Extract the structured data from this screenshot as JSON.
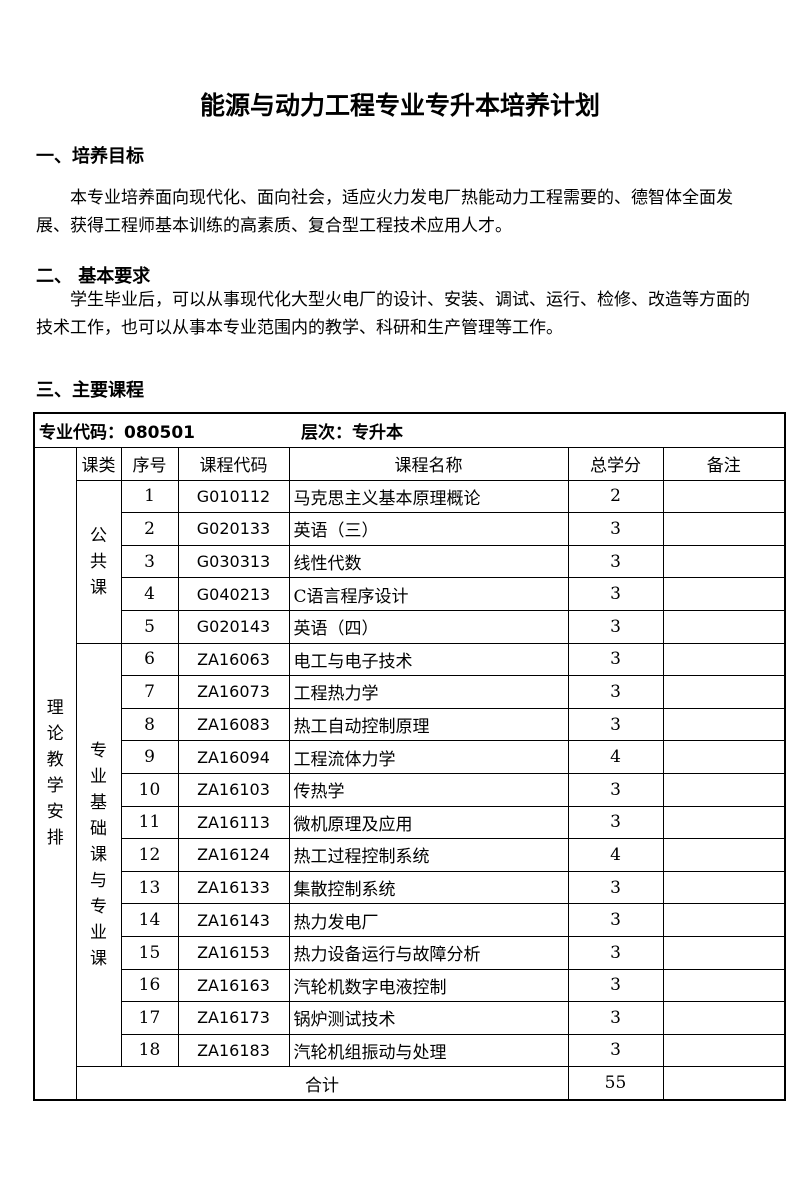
{
  "title": "能源与动力工程专业专升本培养计划",
  "s1": {
    "heading": "一、培养目标",
    "text": "本专业培养面向现代化、面向社会，适应火力发电厂热能动力工程需要的、德智体全面发展、获得工程师基本训练的高素质、复合型工程技术应用人才。"
  },
  "s2": {
    "heading": "二、  基本要求",
    "text": "学生毕业后，可以从事现代化大型火电厂的设计、安装、调试、运行、检修、改造等方面的技术工作，也可以从事本专业范围内的教学、科研和生产管理等工作。"
  },
  "s3": {
    "heading": "三、主要课程"
  },
  "table": {
    "major_code": "专业代码：080501",
    "level": "层次：专升本",
    "section": "理论教学安排",
    "headers": [
      "课类",
      "序号",
      "课程代码",
      "课程名称",
      "总学分",
      "备注"
    ],
    "groups": [
      "公共课",
      "专业基础课与专业课"
    ],
    "rows": [
      {
        "no": "1",
        "code": "G010112",
        "name": "马克思主义基本原理概论",
        "credits": "2"
      },
      {
        "no": "2",
        "code": "G020133",
        "name": "英语（三）",
        "credits": "3"
      },
      {
        "no": "3",
        "code": "G030313",
        "name": "线性代数",
        "credits": "3"
      },
      {
        "no": "4",
        "code": "G040213",
        "name": "C语言程序设计",
        "credits": "3"
      },
      {
        "no": "5",
        "code": "G020143",
        "name": "英语（四）",
        "credits": "3"
      },
      {
        "no": "6",
        "code": "ZA16063",
        "name": "电工与电子技术",
        "credits": "3"
      },
      {
        "no": "7",
        "code": "ZA16073",
        "name": "工程热力学",
        "credits": "3"
      },
      {
        "no": "8",
        "code": "ZA16083",
        "name": "热工自动控制原理",
        "credits": "3"
      },
      {
        "no": "9",
        "code": "ZA16094",
        "name": "工程流体力学",
        "credits": "4"
      },
      {
        "no": "10",
        "code": "ZA16103",
        "name": "传热学",
        "credits": "3"
      },
      {
        "no": "11",
        "code": "ZA16113",
        "name": "微机原理及应用",
        "credits": "3"
      },
      {
        "no": "12",
        "code": "ZA16124",
        "name": "热工过程控制系统",
        "credits": "4"
      },
      {
        "no": "13",
        "code": "ZA16133",
        "name": "集散控制系统",
        "credits": "3"
      },
      {
        "no": "14",
        "code": "ZA16143",
        "name": "热力发电厂",
        "credits": "3"
      },
      {
        "no": "15",
        "code": "ZA16153",
        "name": "热力设备运行与故障分析",
        "credits": "3"
      },
      {
        "no": "16",
        "code": "ZA16163",
        "name": "汽轮机数字电液控制",
        "credits": "3"
      },
      {
        "no": "17",
        "code": "ZA16173",
        "name": "锅炉测试技术",
        "credits": "3"
      },
      {
        "no": "18",
        "code": "ZA16183",
        "name": "汽轮机组振动与处理",
        "credits": "3"
      }
    ],
    "total_label": "合计",
    "total_credits": "55"
  }
}
